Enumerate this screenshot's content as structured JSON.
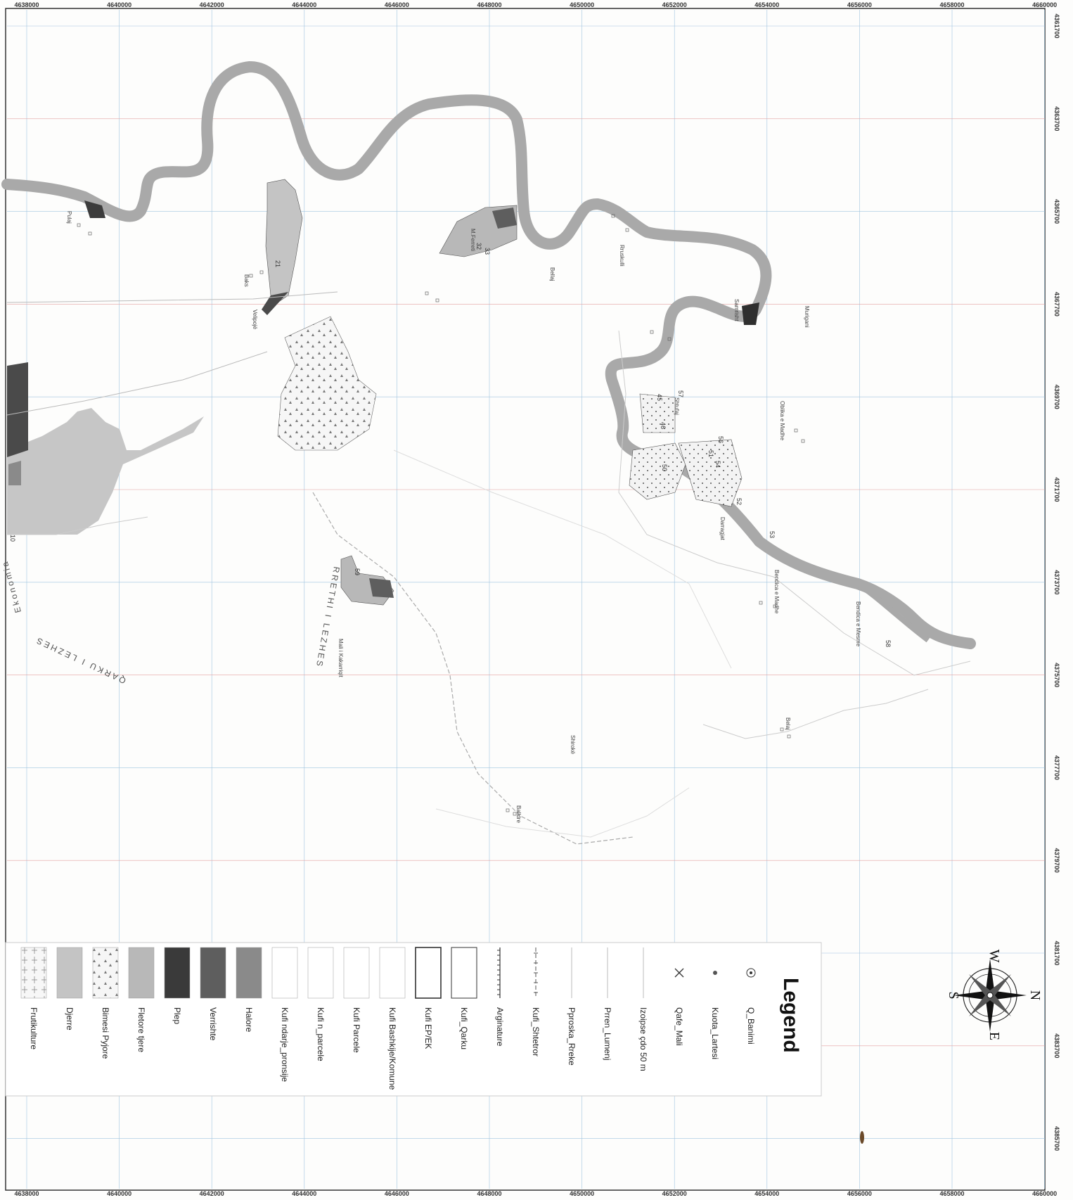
{
  "grid": {
    "x_ticks": [
      "4638000",
      "4640000",
      "4642000",
      "4644000",
      "4646000",
      "4648000",
      "4650000",
      "4652000",
      "4654000",
      "4656000",
      "4658000",
      "4660000"
    ],
    "y_ticks": [
      "4361700",
      "4363700",
      "4365700",
      "4367700",
      "4369700",
      "4371700",
      "4373700",
      "4375700",
      "4377700",
      "4379700",
      "4381700",
      "4383700",
      "4385700"
    ]
  },
  "places": {
    "pulaj": "Pulaj",
    "velipoje": "Velipojë",
    "baks": "Baks",
    "mferreti": "M.Ferreti",
    "bellaj": "Bellaj",
    "rruskulli": "Rruskulli",
    "samrisht": "Samrisht",
    "murigani": "Murigani",
    "oblika": "Oblika e Madhe",
    "darragjat": "Darragjat",
    "bendica_madhe": "Bendica e Madhe",
    "bendica_mesme": "Bendica e Mesme",
    "belaj": "Belaj",
    "shiroka": "Shirokë",
    "mali_kakarriq": "Mali i Kakarriqit",
    "shtufaj": "Shtufaj",
    "balldre": "Balldre"
  },
  "regions": {
    "qarku_lezhes": "QARKU I LEZHES",
    "rrethi_lezhes": "RRETHI I LEZHES",
    "ekonomia": "Ekonomia"
  },
  "parcels": [
    "21",
    "32",
    "33",
    "46",
    "45",
    "50",
    "51",
    "52",
    "53",
    "54",
    "56",
    "57",
    "58",
    "59",
    "10"
  ],
  "legend": {
    "title": "Legend",
    "items": [
      {
        "label": "Q_Banimi",
        "kind": "point-circle"
      },
      {
        "label": "Kuota_Lartesi",
        "kind": "point-dot"
      },
      {
        "label": "Qafe_Mali",
        "kind": "point-x"
      },
      {
        "label": "Izoipse çdo 50 m",
        "kind": "line-light"
      },
      {
        "label": "Prren_Lumenj",
        "kind": "line-light"
      },
      {
        "label": "Pproska_Rreke",
        "kind": "line-light"
      },
      {
        "label": "Kufi_Shtetror",
        "kind": "line-dash-cross"
      },
      {
        "label": "Arginature",
        "kind": "line-tick"
      },
      {
        "label": "Kufi_Qarku",
        "kind": "box-outline"
      },
      {
        "label": "Kufi EP/EK",
        "kind": "box-outline-bold"
      },
      {
        "label": "Kufi Bashkije/Komune",
        "kind": "box-outline-light"
      },
      {
        "label": "Kufi Parcele",
        "kind": "box-outline-light"
      },
      {
        "label": "Kufi n_parcele",
        "kind": "box-outline-light"
      },
      {
        "label": "Kufi ndarje_pronsije",
        "kind": "box-outline-light"
      },
      {
        "label": "Halore",
        "kind": "fill",
        "color": "#8a8a8a"
      },
      {
        "label": "Verrishte",
        "kind": "fill",
        "color": "#5e5e5e"
      },
      {
        "label": "Plep",
        "kind": "fill",
        "color": "#3a3a3a"
      },
      {
        "label": "Fletore tjere",
        "kind": "fill",
        "color": "#b8b8b8"
      },
      {
        "label": "Bimesi Pyjore",
        "kind": "fill-pattern",
        "color": "#ececec"
      },
      {
        "label": "Djerre",
        "kind": "fill",
        "color": "#c4c4c4"
      },
      {
        "label": "Frutikulture",
        "kind": "fill-pattern2",
        "color": "#f4f4f4"
      }
    ]
  },
  "compass": {
    "n": "N",
    "e": "E",
    "s": "S",
    "w": "W"
  },
  "colors": {
    "river": "#a9a9a9",
    "lagoon": "#c6c6c6",
    "dark": "#3c3c3c",
    "grid_blue": "#9fc4df",
    "grid_red": "#e3a0a0"
  }
}
